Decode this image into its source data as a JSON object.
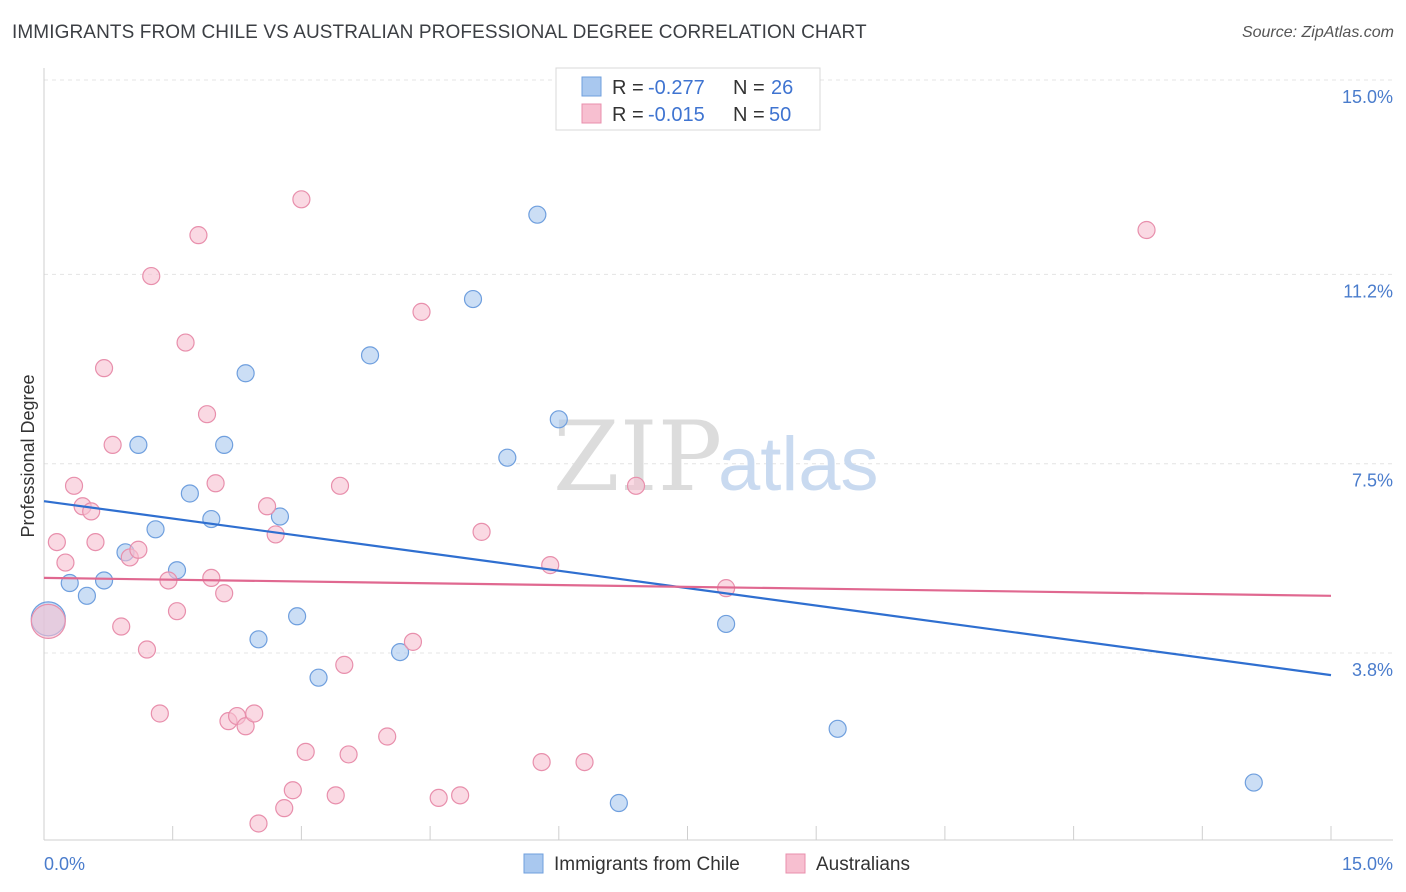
{
  "header": {
    "title": "IMMIGRANTS FROM CHILE VS AUSTRALIAN PROFESSIONAL DEGREE CORRELATION CHART",
    "source": "Source: ZipAtlas.com"
  },
  "watermark": {
    "zip": "ZIP",
    "atlas": "atlas"
  },
  "legend": {
    "rows": [
      {
        "r_label": "R = ",
        "r_value": "-0.277",
        "n_label": "N = ",
        "n_value": "26",
        "color": "#a9c8ef",
        "stroke": "#6f9fde"
      },
      {
        "r_label": "R = ",
        "r_value": "-0.015",
        "n_label": "N = ",
        "n_value": "50",
        "color": "#f7bfd0",
        "stroke": "#e88fac"
      }
    ]
  },
  "chart_data": {
    "type": "scatter",
    "xlim": [
      0,
      15
    ],
    "ylim": [
      0.5,
      15.5
    ],
    "x_tick_labels": {
      "left": "0.0%",
      "right": "15.0%"
    },
    "y_ticks": [
      {
        "value": 15.0,
        "label": "15.0%"
      },
      {
        "value": 11.2,
        "label": "11.2%"
      },
      {
        "value": 7.5,
        "label": "7.5%"
      },
      {
        "value": 3.8,
        "label": "3.8%"
      }
    ],
    "ylabel": "Professional Degree",
    "grid": true,
    "series": [
      {
        "name": "Immigrants from Chile",
        "color": "#a9c8ef",
        "stroke": "#6f9fde",
        "line_color": "#2f6fd0",
        "trend": {
          "x0": 0.0,
          "y0": 7.1,
          "x1": 15.0,
          "y1": 3.7
        },
        "points": [
          {
            "x": 0.05,
            "y": 4.8,
            "big": true
          },
          {
            "x": 0.3,
            "y": 5.5
          },
          {
            "x": 0.5,
            "y": 5.25
          },
          {
            "x": 0.7,
            "y": 5.55
          },
          {
            "x": 0.95,
            "y": 6.1
          },
          {
            "x": 1.1,
            "y": 8.2
          },
          {
            "x": 1.3,
            "y": 6.55
          },
          {
            "x": 1.55,
            "y": 5.75
          },
          {
            "x": 1.7,
            "y": 7.25
          },
          {
            "x": 1.95,
            "y": 6.75
          },
          {
            "x": 2.1,
            "y": 8.2
          },
          {
            "x": 2.35,
            "y": 9.6
          },
          {
            "x": 2.5,
            "y": 4.4
          },
          {
            "x": 2.75,
            "y": 6.8
          },
          {
            "x": 2.95,
            "y": 4.85
          },
          {
            "x": 3.2,
            "y": 3.65
          },
          {
            "x": 3.8,
            "y": 9.95
          },
          {
            "x": 4.15,
            "y": 4.15
          },
          {
            "x": 5.0,
            "y": 11.05
          },
          {
            "x": 5.4,
            "y": 7.95
          },
          {
            "x": 5.75,
            "y": 12.7
          },
          {
            "x": 6.0,
            "y": 8.7
          },
          {
            "x": 6.7,
            "y": 1.2
          },
          {
            "x": 7.95,
            "y": 4.7
          },
          {
            "x": 9.25,
            "y": 2.65
          },
          {
            "x": 14.1,
            "y": 1.6
          }
        ]
      },
      {
        "name": "Australians",
        "color": "#f7bfd0",
        "stroke": "#e88fac",
        "line_color": "#e06890",
        "trend": {
          "x0": 0.0,
          "y0": 5.6,
          "x1": 15.0,
          "y1": 5.25
        },
        "points": [
          {
            "x": 0.05,
            "y": 4.75,
            "big": true
          },
          {
            "x": 0.15,
            "y": 6.3
          },
          {
            "x": 0.25,
            "y": 5.9
          },
          {
            "x": 0.35,
            "y": 7.4
          },
          {
            "x": 0.45,
            "y": 7.0
          },
          {
            "x": 0.55,
            "y": 6.9
          },
          {
            "x": 0.6,
            "y": 6.3
          },
          {
            "x": 0.7,
            "y": 9.7
          },
          {
            "x": 0.8,
            "y": 8.2
          },
          {
            "x": 0.9,
            "y": 4.65
          },
          {
            "x": 1.0,
            "y": 6.0
          },
          {
            "x": 1.1,
            "y": 6.15
          },
          {
            "x": 1.2,
            "y": 4.2
          },
          {
            "x": 1.25,
            "y": 11.5
          },
          {
            "x": 1.35,
            "y": 2.95
          },
          {
            "x": 1.45,
            "y": 5.55
          },
          {
            "x": 1.55,
            "y": 4.95
          },
          {
            "x": 1.65,
            "y": 10.2
          },
          {
            "x": 1.8,
            "y": 12.3
          },
          {
            "x": 1.9,
            "y": 8.8
          },
          {
            "x": 1.95,
            "y": 5.6
          },
          {
            "x": 2.0,
            "y": 7.45
          },
          {
            "x": 2.1,
            "y": 5.3
          },
          {
            "x": 2.15,
            "y": 2.8
          },
          {
            "x": 2.25,
            "y": 2.9
          },
          {
            "x": 2.35,
            "y": 2.7
          },
          {
            "x": 2.45,
            "y": 2.95
          },
          {
            "x": 2.5,
            "y": 0.8
          },
          {
            "x": 2.6,
            "y": 7.0
          },
          {
            "x": 2.7,
            "y": 6.45
          },
          {
            "x": 2.8,
            "y": 1.1
          },
          {
            "x": 2.9,
            "y": 1.45
          },
          {
            "x": 3.0,
            "y": 13.0
          },
          {
            "x": 3.05,
            "y": 2.2
          },
          {
            "x": 3.4,
            "y": 1.35
          },
          {
            "x": 3.45,
            "y": 7.4
          },
          {
            "x": 3.5,
            "y": 3.9
          },
          {
            "x": 3.55,
            "y": 2.15
          },
          {
            "x": 4.0,
            "y": 2.5
          },
          {
            "x": 4.3,
            "y": 4.35
          },
          {
            "x": 4.4,
            "y": 10.8
          },
          {
            "x": 4.6,
            "y": 1.3
          },
          {
            "x": 4.85,
            "y": 1.35
          },
          {
            "x": 5.1,
            "y": 6.5
          },
          {
            "x": 5.8,
            "y": 2.0
          },
          {
            "x": 5.9,
            "y": 5.85
          },
          {
            "x": 6.3,
            "y": 2.0
          },
          {
            "x": 6.9,
            "y": 7.4
          },
          {
            "x": 7.95,
            "y": 5.4
          },
          {
            "x": 12.85,
            "y": 12.4
          }
        ]
      }
    ]
  }
}
